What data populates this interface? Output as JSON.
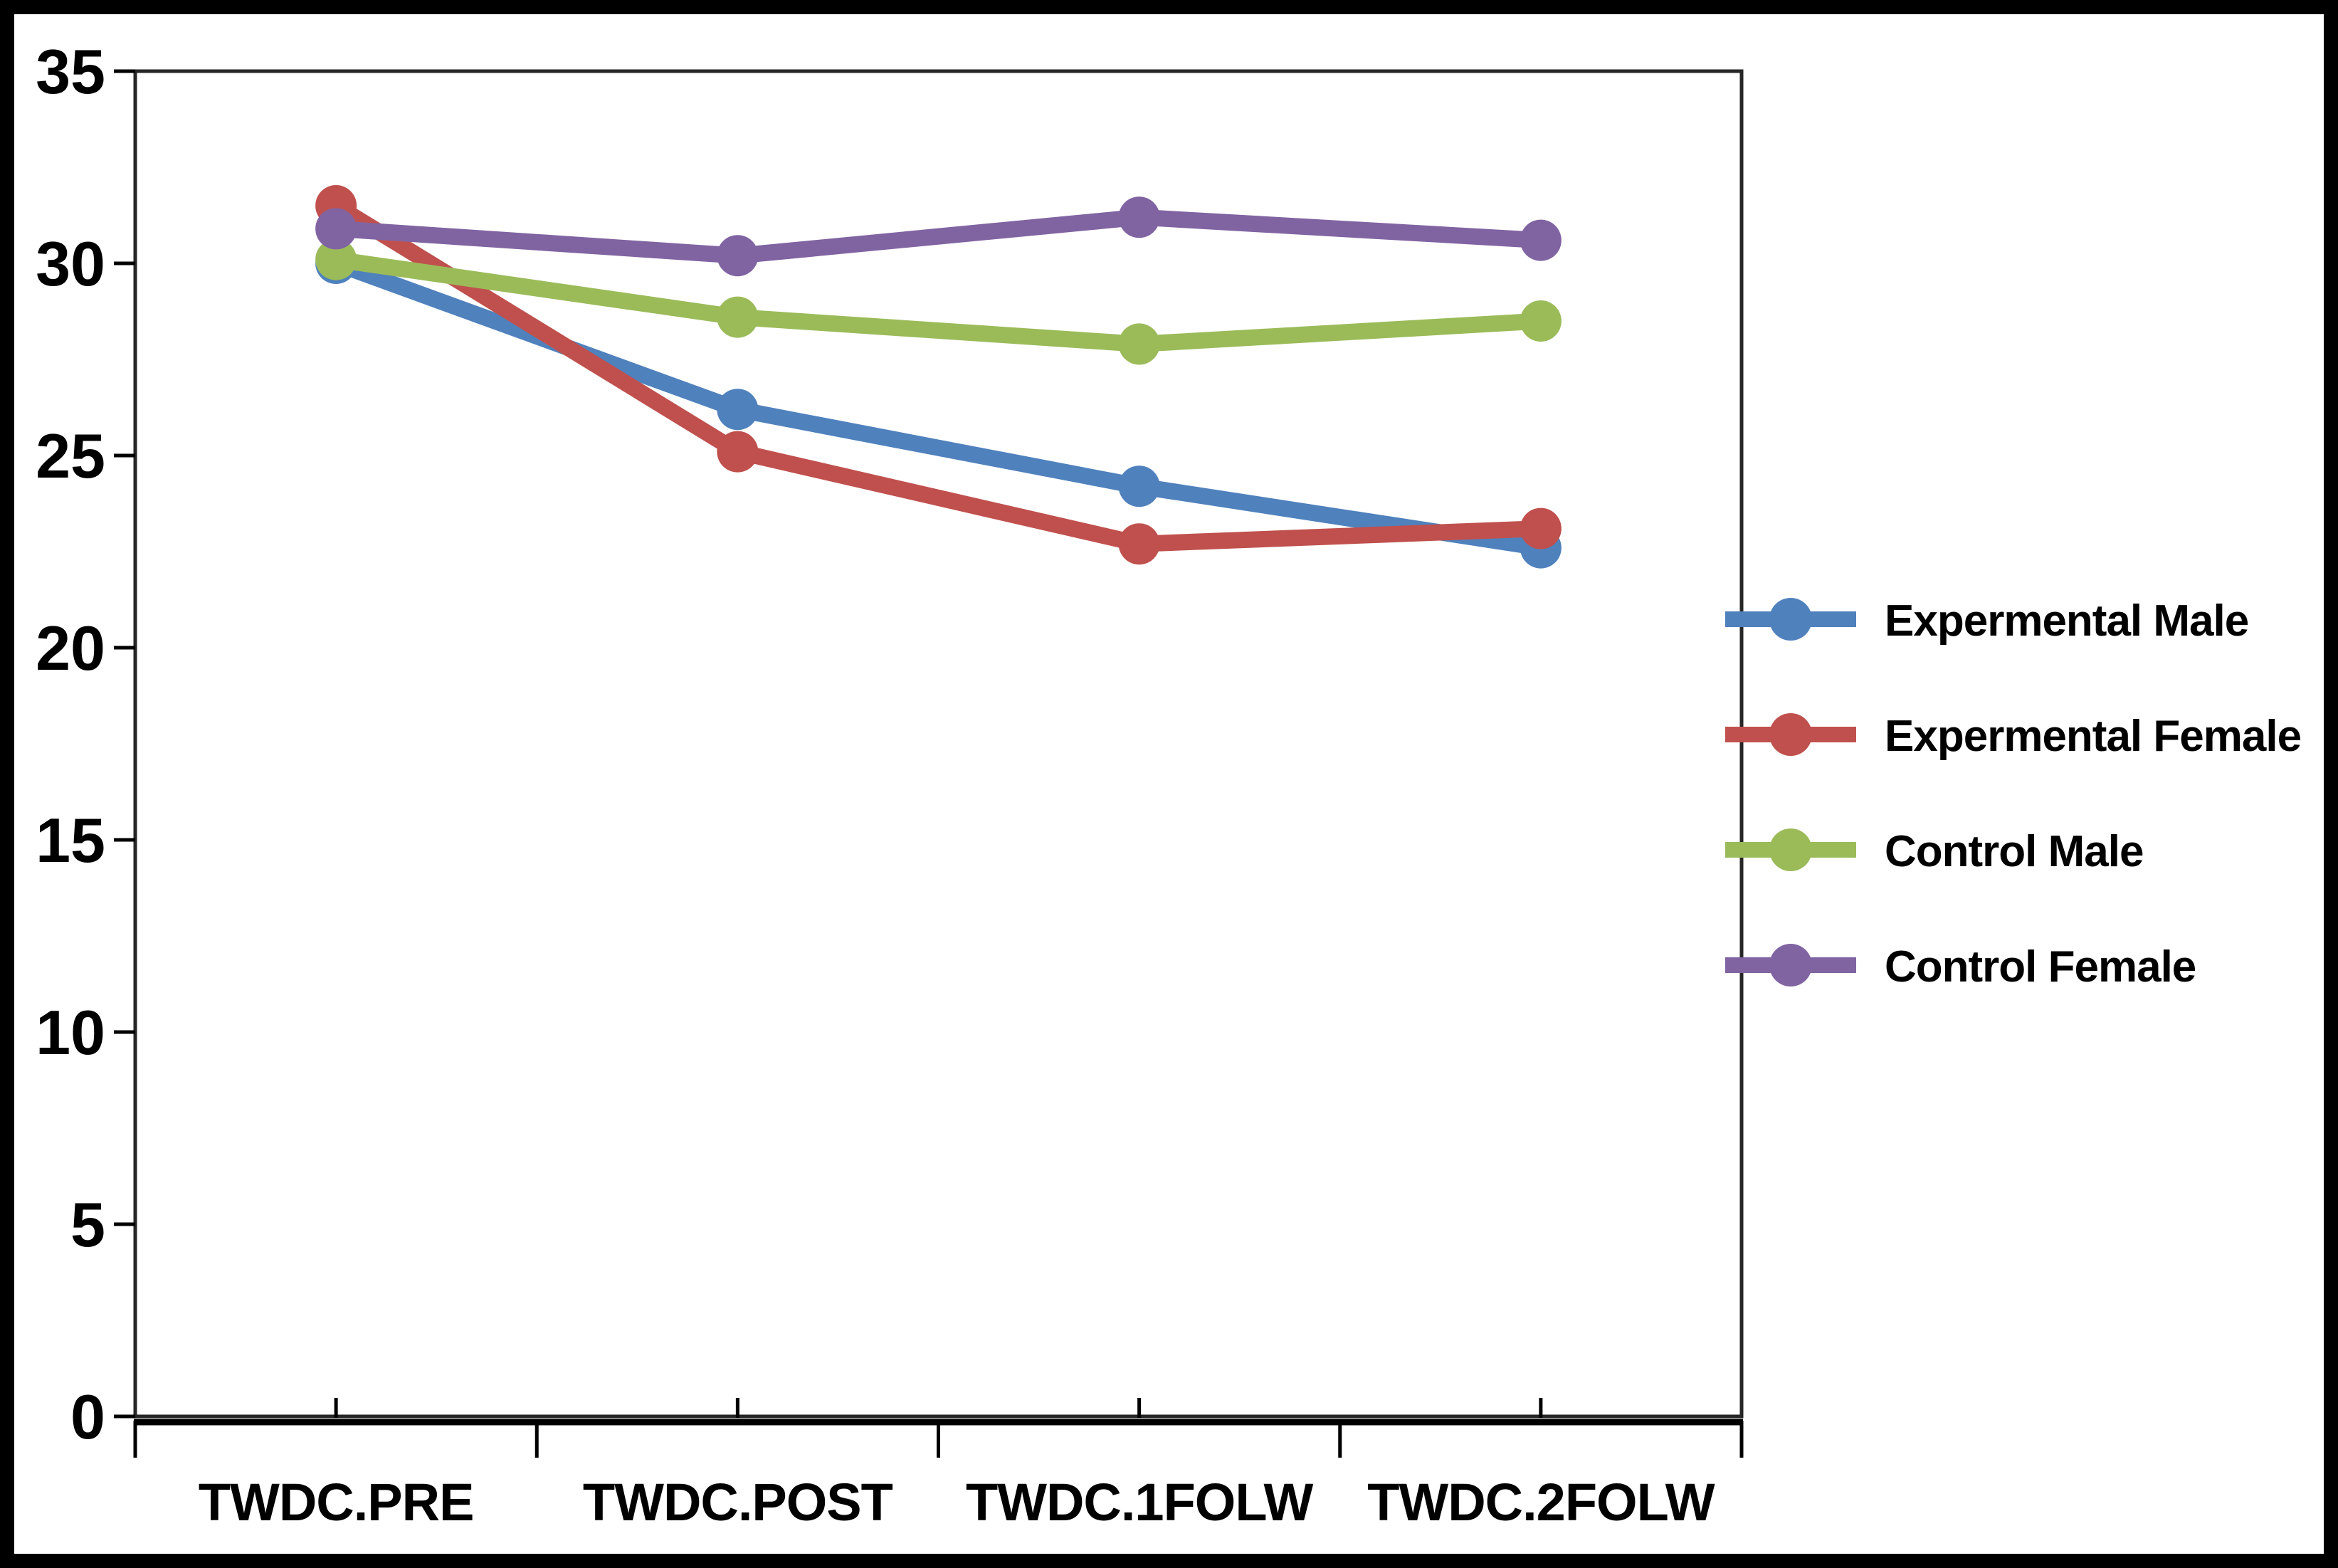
{
  "chart_data": {
    "type": "line",
    "title": "",
    "xlabel": "",
    "ylabel": "",
    "categories": [
      "TWDC.PRE",
      "TWDC.POST",
      "TWDC.1FOLW",
      "TWDC.2FOLW"
    ],
    "series": [
      {
        "name": "Expermental Male",
        "color": "#4f81bd",
        "values": [
          30.0,
          26.2,
          24.2,
          22.6
        ]
      },
      {
        "name": "Expermental Female",
        "color": "#c0504d",
        "values": [
          31.5,
          25.1,
          22.7,
          23.1
        ]
      },
      {
        "name": "Control Male",
        "color": "#9bbb59",
        "values": [
          30.1,
          28.6,
          27.9,
          28.5
        ]
      },
      {
        "name": "Control Female",
        "color": "#8064a2",
        "values": [
          30.9,
          30.2,
          31.2,
          30.6
        ]
      }
    ],
    "ylim": [
      0,
      35
    ],
    "y_ticks": [
      0,
      5,
      10,
      15,
      20,
      25,
      30,
      35
    ],
    "grid": "off",
    "legend_position": "right-middle",
    "marker": "circle"
  },
  "frame": {
    "background": "#ffffff",
    "outer_border_color": "#000000",
    "plot_border_color": "#262626",
    "axis_color": "#000000",
    "text_color": "#000000"
  }
}
